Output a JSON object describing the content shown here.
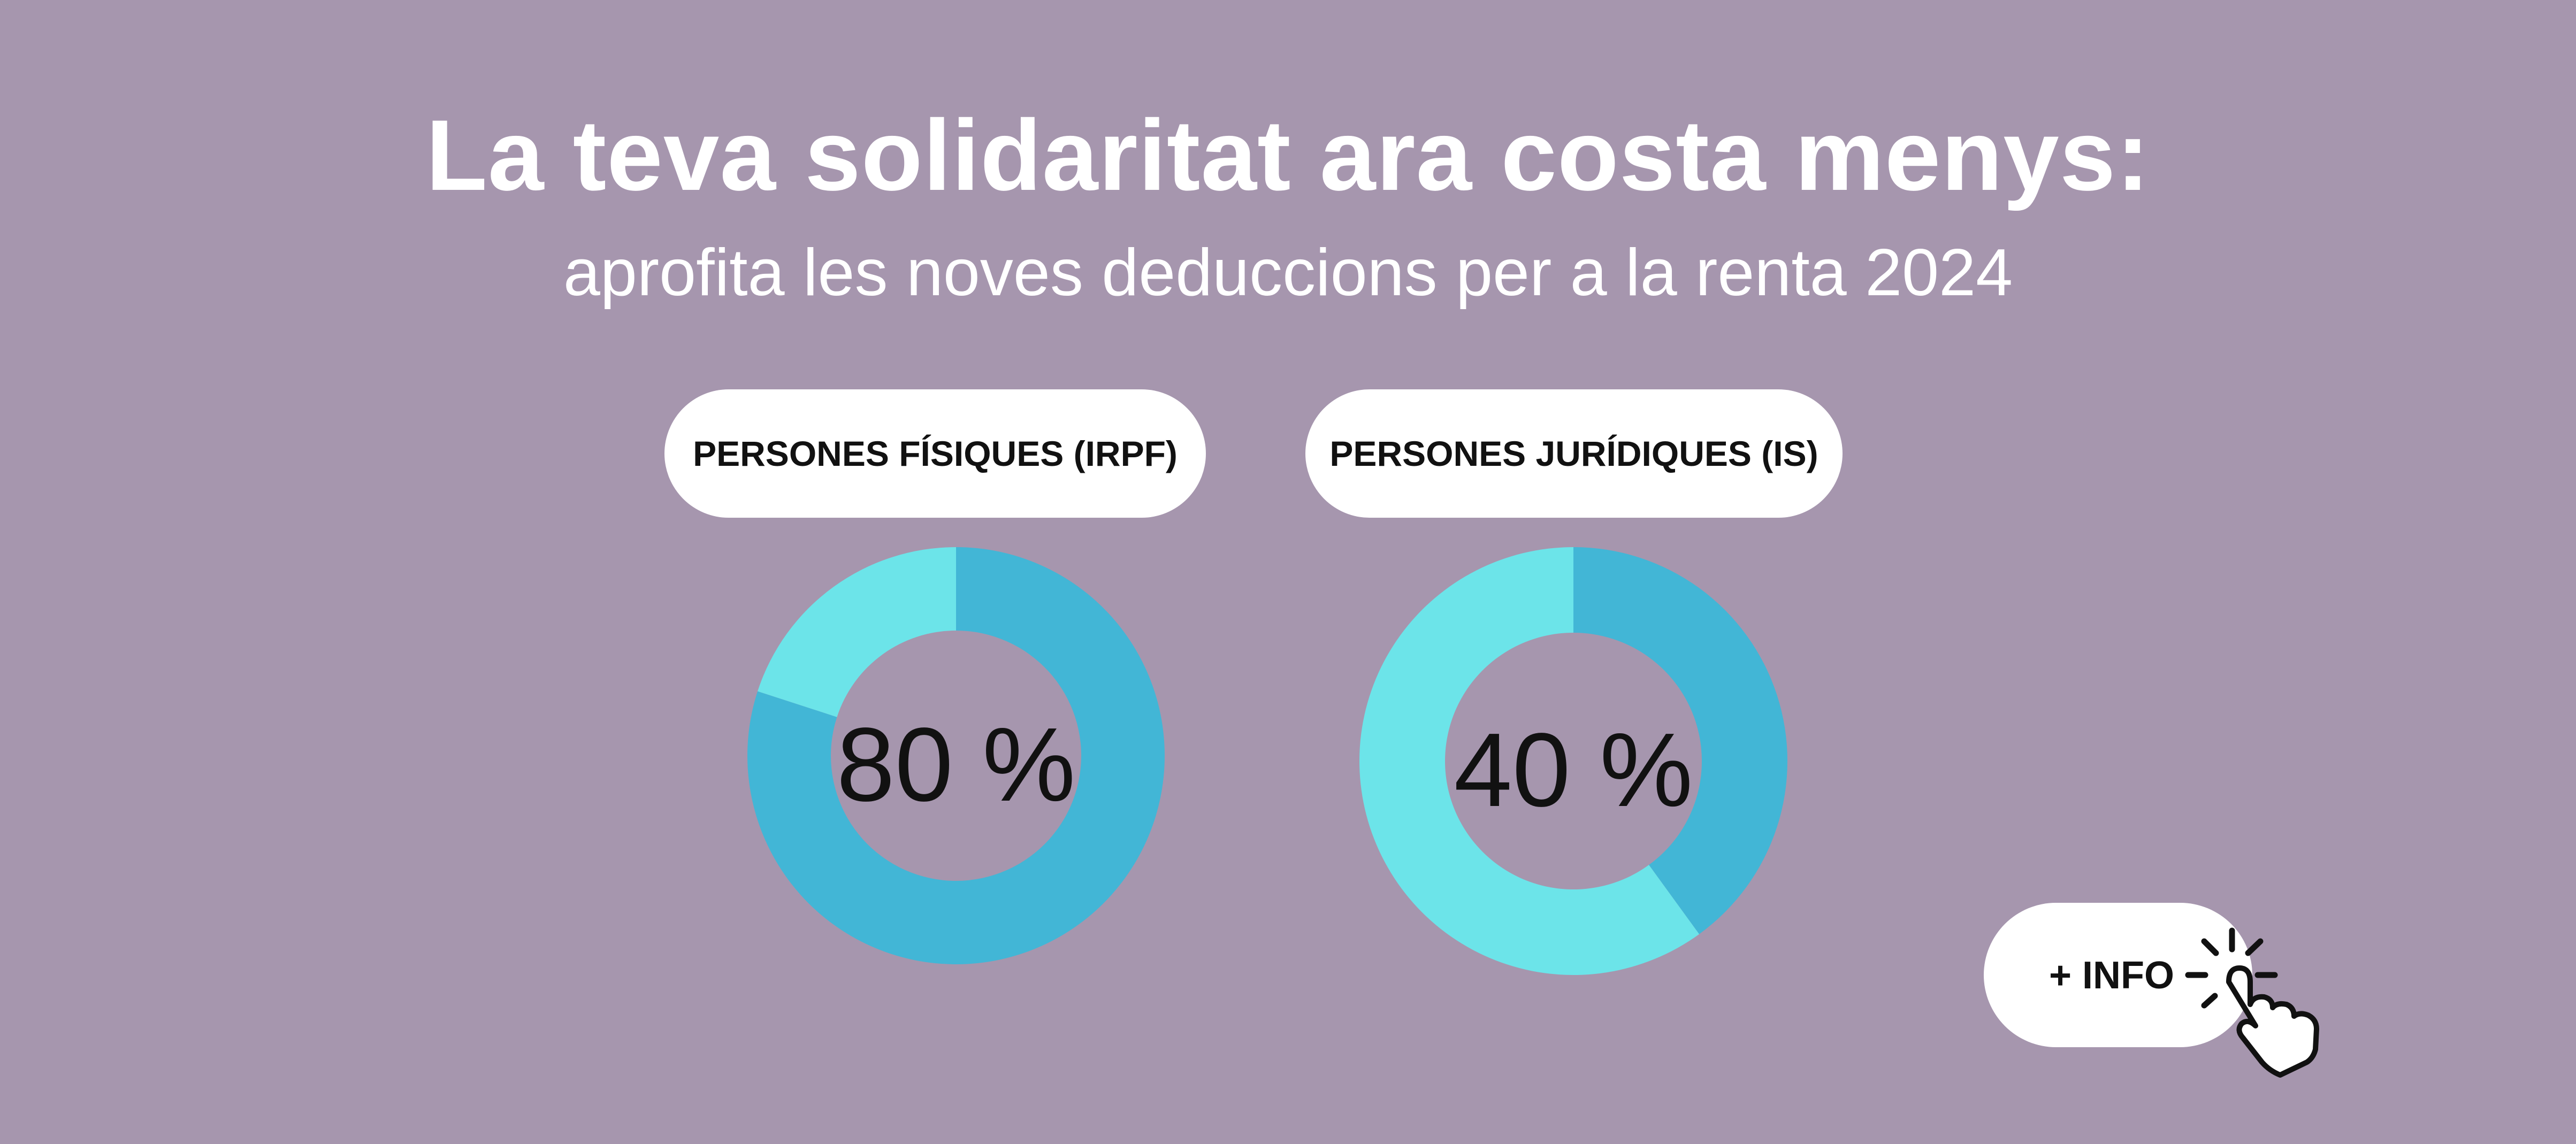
{
  "header": {
    "title": "La teva solidaritat ara costa menys:",
    "subtitle": "aprofita les noves deduccions per a la renta 2024"
  },
  "colors": {
    "background": "#a696ae",
    "segment_dark": "#42b6d6",
    "segment_light": "#6ce4e9"
  },
  "chart_data": [
    {
      "type": "pie",
      "title": "PERSONES FÍSIQUES (IRPF)",
      "center_label": "80 %",
      "slices": [
        {
          "value": 80,
          "color": "#42b6d6"
        },
        {
          "value": 20,
          "color": "#6ce4e9"
        }
      ]
    },
    {
      "type": "pie",
      "title": "PERSONES JURÍDIQUES (IS)",
      "center_label": "40 %",
      "slices": [
        {
          "value": 40,
          "color": "#42b6d6"
        },
        {
          "value": 60,
          "color": "#6ce4e9"
        }
      ]
    }
  ],
  "info_button": {
    "label": "+ INFO",
    "icon": "pointer-hand-icon"
  }
}
